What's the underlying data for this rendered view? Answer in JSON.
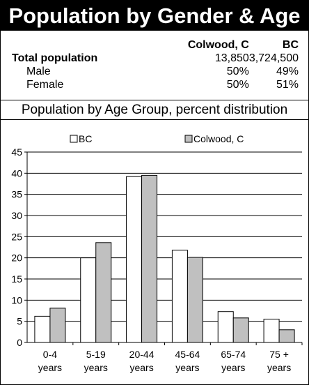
{
  "header": {
    "title": "Population by Gender & Age"
  },
  "population_table": {
    "columns": [
      "",
      "Colwood, C",
      "BC"
    ],
    "rows": [
      {
        "label": "Total population",
        "colwood": "13,850",
        "bc": "3,724,500"
      },
      {
        "label": "Male",
        "colwood": "50%",
        "bc": "49%"
      },
      {
        "label": "Female",
        "colwood": "50%",
        "bc": "51%"
      }
    ]
  },
  "section": {
    "title": "Population by Age Group, percent distribution"
  },
  "chart_data": {
    "type": "bar",
    "title": "Population by Age Group, percent distribution",
    "categories": [
      [
        "0-4",
        "years"
      ],
      [
        "5-19",
        "years"
      ],
      [
        "20-44",
        "years"
      ],
      [
        "45-64",
        "years"
      ],
      [
        "65-74",
        "years"
      ],
      [
        "75 +",
        "years"
      ]
    ],
    "series": [
      {
        "name": "BC",
        "color": "#ffffff",
        "values": [
          6.2,
          20.0,
          39.2,
          21.8,
          7.3,
          5.5
        ]
      },
      {
        "name": "Colwood, C",
        "color": "#c0c0c0",
        "values": [
          8.1,
          23.6,
          39.5,
          20.1,
          5.8,
          3.0
        ]
      }
    ],
    "ylim": [
      0,
      45
    ],
    "yticks": [
      0,
      5,
      10,
      15,
      20,
      25,
      30,
      35,
      40,
      45
    ],
    "grid": true,
    "legend_position": "top"
  }
}
